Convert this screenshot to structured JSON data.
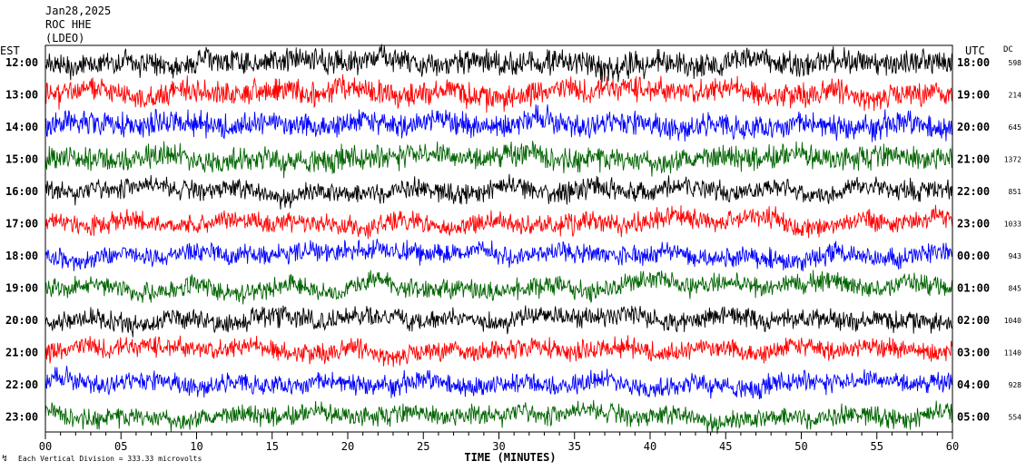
{
  "header": {
    "date": "Jan28,2025",
    "station": "ROC HHE",
    "network": "(LDEO)"
  },
  "left_axis_label": "EST",
  "right_axis_label": "UTC",
  "dc_label": "DC",
  "footer": {
    "scale_note": "Each Vertical Division = 333.33 microvolts"
  },
  "colors": {
    "trace_cycle": [
      "#000000",
      "#ff0000",
      "#0000ff",
      "#006400"
    ],
    "frame": "#000000",
    "background": "#ffffff"
  },
  "chart_data": {
    "type": "line",
    "title": "",
    "xlabel": "TIME (MINUTES)",
    "x_ticks": [
      "00",
      "05",
      "10",
      "15",
      "20",
      "25",
      "30",
      "35",
      "40",
      "45",
      "50",
      "55",
      "60"
    ],
    "xlim": [
      0,
      60
    ],
    "rows": [
      {
        "est": "12:00",
        "utc": "18:00",
        "dc": "598",
        "color": "#000000"
      },
      {
        "est": "13:00",
        "utc": "19:00",
        "dc": "214",
        "color": "#ff0000"
      },
      {
        "est": "14:00",
        "utc": "20:00",
        "dc": "645",
        "color": "#0000ff"
      },
      {
        "est": "15:00",
        "utc": "21:00",
        "dc": "1372",
        "color": "#006400"
      },
      {
        "est": "16:00",
        "utc": "22:00",
        "dc": "851",
        "color": "#000000"
      },
      {
        "est": "17:00",
        "utc": "23:00",
        "dc": "1033",
        "color": "#ff0000"
      },
      {
        "est": "18:00",
        "utc": "00:00",
        "dc": "943",
        "color": "#0000ff"
      },
      {
        "est": "19:00",
        "utc": "01:00",
        "dc": "845",
        "color": "#006400"
      },
      {
        "est": "20:00",
        "utc": "02:00",
        "dc": "1040",
        "color": "#000000"
      },
      {
        "est": "21:00",
        "utc": "03:00",
        "dc": "1140",
        "color": "#ff0000"
      },
      {
        "est": "22:00",
        "utc": "04:00",
        "dc": "928",
        "color": "#0000ff"
      },
      {
        "est": "23:00",
        "utc": "05:00",
        "dc": "554",
        "color": "#006400"
      }
    ]
  }
}
